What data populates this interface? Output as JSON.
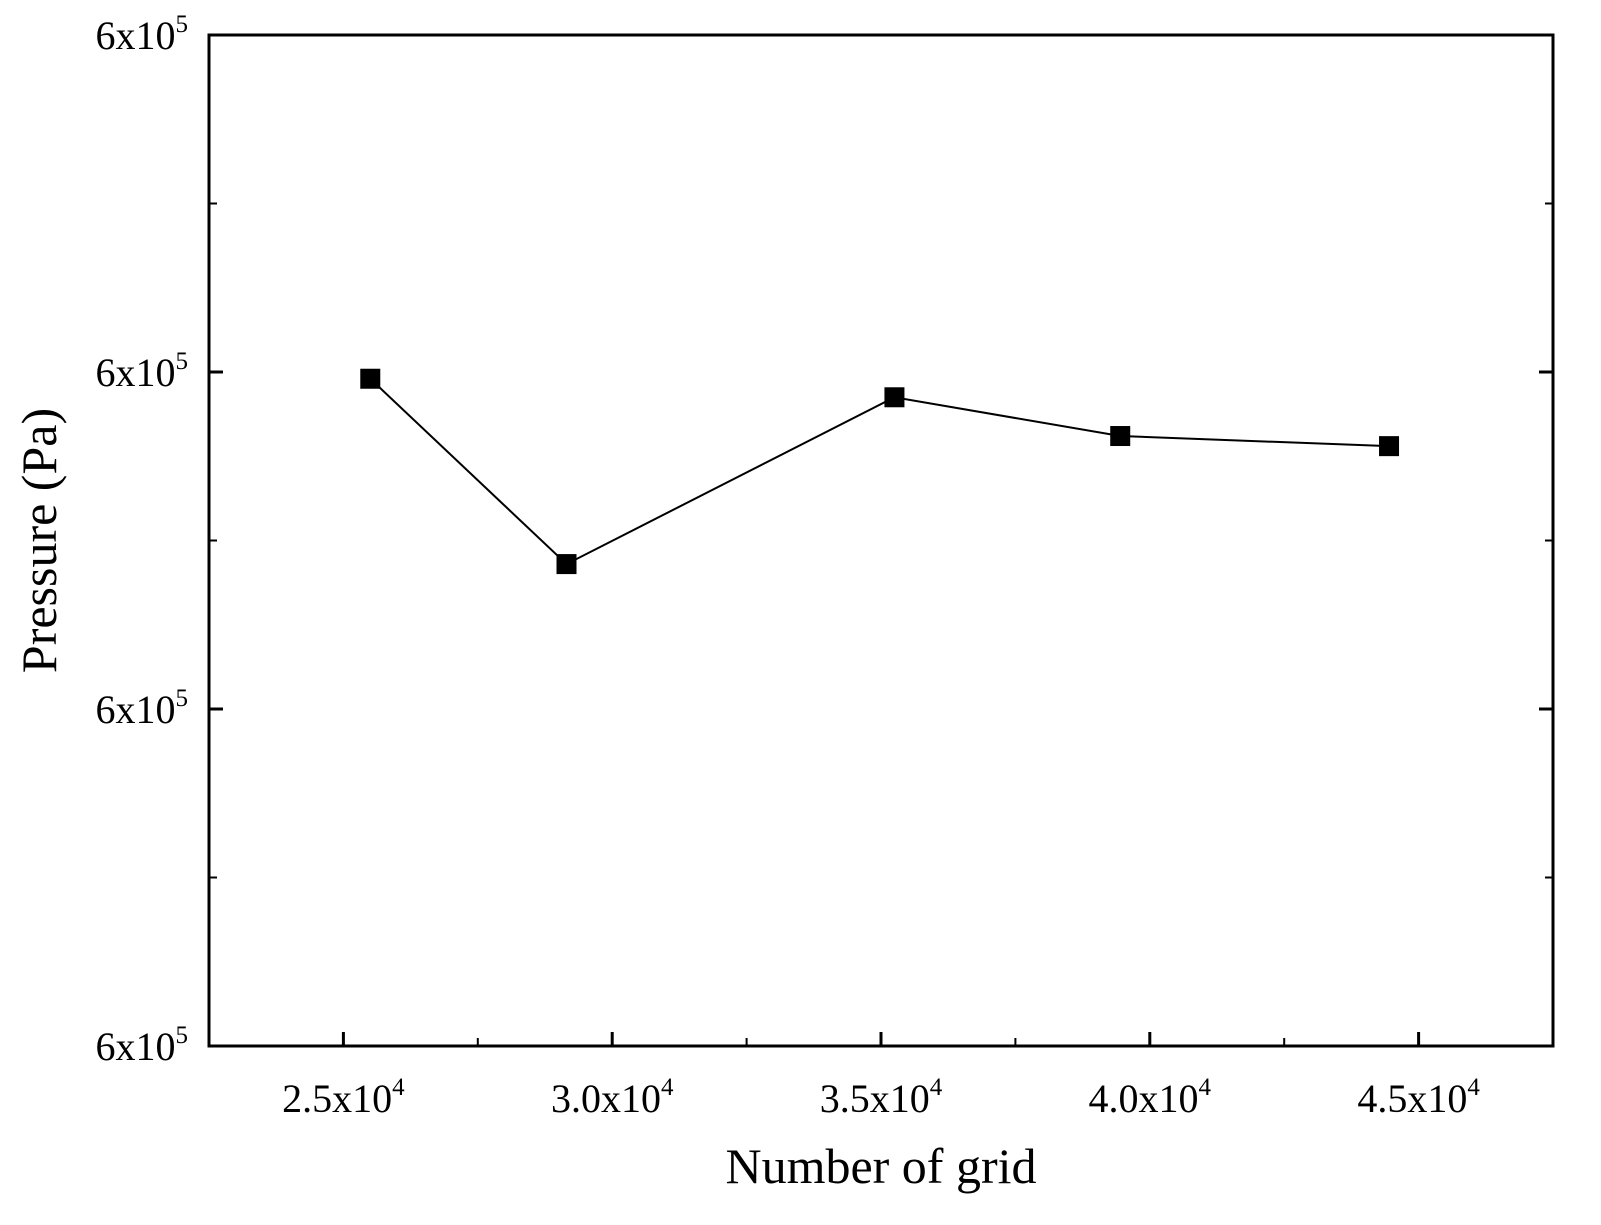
{
  "chart_data": {
    "type": "line",
    "title": "",
    "xlabel": "Number of grid",
    "ylabel": "Pressure (Pa)",
    "xlim": [
      22500,
      47500
    ],
    "ylim": [
      0,
      6
    ],
    "x_ticks": [
      {
        "value": 25000,
        "mantissa": "2.5x10",
        "exp": "4"
      },
      {
        "value": 30000,
        "mantissa": "3.0x10",
        "exp": "4"
      },
      {
        "value": 35000,
        "mantissa": "3.5x10",
        "exp": "4"
      },
      {
        "value": 40000,
        "mantissa": "4.0x10",
        "exp": "4"
      },
      {
        "value": 45000,
        "mantissa": "4.5x10",
        "exp": "4"
      }
    ],
    "x_minor_ticks": [
      27500,
      32500,
      37500,
      42500
    ],
    "y_ticks": [
      {
        "value": 0,
        "mantissa": "6x10",
        "exp": "5"
      },
      {
        "value": 2,
        "mantissa": "6x10",
        "exp": "5"
      },
      {
        "value": 4,
        "mantissa": "6x10",
        "exp": "5"
      },
      {
        "value": 6,
        "mantissa": "6x10",
        "exp": "5"
      }
    ],
    "y_minor_ticks": [
      1,
      3,
      5
    ],
    "grid": false,
    "marker": "filled-square",
    "colors": {
      "line": "#000000",
      "marker": "#000000",
      "frame": "#000000"
    },
    "series": [
      {
        "x": [
          25500,
          29150,
          35250,
          39450,
          44450
        ],
        "y": [
          3.96,
          2.86,
          3.85,
          3.62,
          3.56
        ]
      }
    ]
  }
}
